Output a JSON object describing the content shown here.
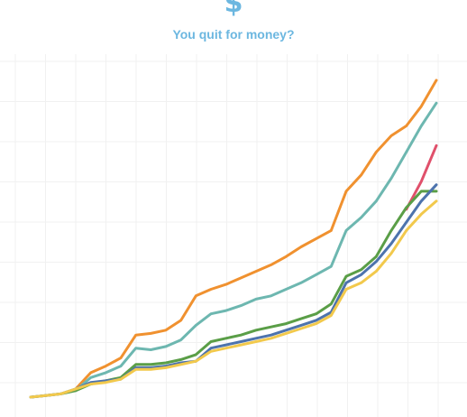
{
  "header": {
    "icon_glyph": "$",
    "icon": "dollar-sign-icon",
    "title": "You quit for money?"
  },
  "chart_data": {
    "type": "line",
    "title": "You quit for money?",
    "xlabel": "",
    "ylabel": "",
    "grid": true,
    "legend": "none",
    "x": [
      0,
      1,
      2,
      3,
      4,
      5,
      6,
      7,
      8,
      9,
      10,
      11,
      12,
      13,
      14,
      15,
      16,
      17,
      18,
      19,
      20,
      21,
      22,
      23,
      24,
      25,
      26,
      27
    ],
    "ylim": [
      0,
      100
    ],
    "series": [
      {
        "color": "#f0912f",
        "values": [
          null,
          null,
          null,
          2.5,
          7.5,
          9.5,
          12,
          19,
          19.5,
          20.5,
          23.5,
          31,
          33,
          34.5,
          36.5,
          38.5,
          40.5,
          43,
          46,
          48.5,
          51,
          63,
          68,
          75,
          80,
          83,
          89,
          97
        ]
      },
      {
        "color": "#6db7b0",
        "values": [
          null,
          null,
          null,
          2,
          6,
          7.5,
          9.5,
          15,
          14.5,
          15.5,
          17.5,
          22,
          25.5,
          26.5,
          28,
          30,
          31,
          33,
          35,
          37.5,
          40,
          51,
          55,
          60,
          67,
          75,
          83,
          90
        ]
      },
      {
        "color": "#e0506b",
        "values": [
          null,
          null,
          null,
          null,
          null,
          null,
          null,
          null,
          null,
          null,
          null,
          null,
          null,
          null,
          null,
          null,
          null,
          null,
          null,
          null,
          null,
          null,
          null,
          null,
          null,
          57.5,
          66,
          77
        ]
      },
      {
        "color": "#5a9e47",
        "values": [
          0,
          0.5,
          1,
          2,
          4,
          5,
          6,
          10,
          10,
          10.5,
          11.5,
          13,
          17,
          18,
          19,
          20.5,
          21.5,
          22.5,
          24,
          25.5,
          28.5,
          37,
          39,
          43,
          51,
          58,
          63,
          63
        ]
      },
      {
        "color": "#4d73ad",
        "values": [
          0,
          0.5,
          1,
          2.5,
          4.5,
          5,
          5.5,
          9,
          9,
          9.5,
          10.5,
          11,
          15,
          16,
          17,
          18,
          19,
          20.5,
          22,
          23.5,
          26,
          35,
          37.5,
          41.5,
          47,
          53.5,
          60,
          65
        ]
      },
      {
        "color": "#f2c94c",
        "values": [
          0,
          0.5,
          1,
          2.5,
          4,
          4.5,
          5.5,
          8.5,
          8.5,
          9,
          10,
          11,
          14,
          15,
          16,
          17,
          18,
          19.5,
          21,
          22.5,
          25,
          33,
          35,
          38.5,
          44,
          51,
          56,
          60
        ]
      }
    ]
  }
}
